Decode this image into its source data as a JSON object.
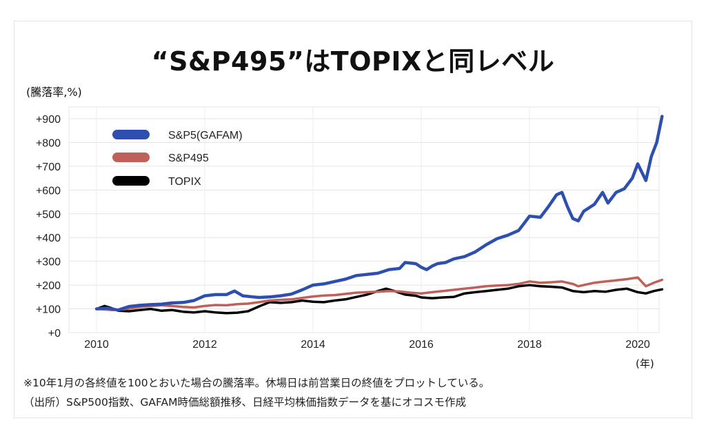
{
  "chart_data": {
    "type": "line",
    "title": "“S&P495”はTOPIXと同レベル",
    "ylabel": "(騰落率,%)",
    "xlabel": "(年)",
    "ylim": [
      0,
      900
    ],
    "xlim": [
      2010,
      2020.4
    ],
    "y_ticks": [
      "+0",
      "+100",
      "+200",
      "+300",
      "+400",
      "+500",
      "+600",
      "+700",
      "+800",
      "+900"
    ],
    "x_ticks": [
      "2010",
      "2012",
      "2014",
      "2016",
      "2018",
      "2020"
    ],
    "grid": "horizontal",
    "legend_position": "top-left",
    "series": [
      {
        "name": "S&P5(GAFAM)",
        "color": "#2c4fb0",
        "points": [
          [
            2010.0,
            100
          ],
          [
            2010.2,
            103
          ],
          [
            2010.4,
            95
          ],
          [
            2010.6,
            110
          ],
          [
            2010.8,
            115
          ],
          [
            2011.0,
            118
          ],
          [
            2011.2,
            120
          ],
          [
            2011.4,
            125
          ],
          [
            2011.6,
            127
          ],
          [
            2011.8,
            135
          ],
          [
            2012.0,
            155
          ],
          [
            2012.2,
            160
          ],
          [
            2012.4,
            160
          ],
          [
            2012.55,
            175
          ],
          [
            2012.7,
            155
          ],
          [
            2012.9,
            150
          ],
          [
            2013.0,
            148
          ],
          [
            2013.2,
            150
          ],
          [
            2013.4,
            155
          ],
          [
            2013.6,
            162
          ],
          [
            2013.8,
            180
          ],
          [
            2014.0,
            200
          ],
          [
            2014.2,
            205
          ],
          [
            2014.4,
            215
          ],
          [
            2014.6,
            225
          ],
          [
            2014.8,
            240
          ],
          [
            2015.0,
            245
          ],
          [
            2015.2,
            250
          ],
          [
            2015.4,
            265
          ],
          [
            2015.6,
            270
          ],
          [
            2015.7,
            295
          ],
          [
            2015.9,
            290
          ],
          [
            2016.0,
            275
          ],
          [
            2016.1,
            265
          ],
          [
            2016.2,
            280
          ],
          [
            2016.3,
            290
          ],
          [
            2016.45,
            295
          ],
          [
            2016.6,
            310
          ],
          [
            2016.8,
            320
          ],
          [
            2017.0,
            340
          ],
          [
            2017.2,
            370
          ],
          [
            2017.4,
            395
          ],
          [
            2017.6,
            410
          ],
          [
            2017.8,
            430
          ],
          [
            2017.9,
            460
          ],
          [
            2018.0,
            490
          ],
          [
            2018.2,
            485
          ],
          [
            2018.35,
            530
          ],
          [
            2018.5,
            580
          ],
          [
            2018.6,
            590
          ],
          [
            2018.7,
            530
          ],
          [
            2018.8,
            480
          ],
          [
            2018.9,
            470
          ],
          [
            2019.0,
            510
          ],
          [
            2019.2,
            540
          ],
          [
            2019.35,
            590
          ],
          [
            2019.45,
            545
          ],
          [
            2019.6,
            590
          ],
          [
            2019.75,
            605
          ],
          [
            2019.9,
            650
          ],
          [
            2020.0,
            710
          ],
          [
            2020.15,
            640
          ],
          [
            2020.25,
            740
          ],
          [
            2020.35,
            800
          ],
          [
            2020.45,
            910
          ]
        ]
      },
      {
        "name": "S&P495",
        "color": "#c0605a",
        "points": [
          [
            2010.0,
            100
          ],
          [
            2010.3,
            95
          ],
          [
            2010.5,
            98
          ],
          [
            2010.8,
            108
          ],
          [
            2011.0,
            112
          ],
          [
            2011.2,
            115
          ],
          [
            2011.4,
            112
          ],
          [
            2011.6,
            108
          ],
          [
            2011.8,
            106
          ],
          [
            2012.0,
            112
          ],
          [
            2012.2,
            116
          ],
          [
            2012.4,
            115
          ],
          [
            2012.6,
            120
          ],
          [
            2012.8,
            122
          ],
          [
            2013.0,
            128
          ],
          [
            2013.2,
            135
          ],
          [
            2013.4,
            138
          ],
          [
            2013.6,
            140
          ],
          [
            2013.8,
            146
          ],
          [
            2014.0,
            152
          ],
          [
            2014.2,
            156
          ],
          [
            2014.4,
            158
          ],
          [
            2014.6,
            163
          ],
          [
            2014.8,
            168
          ],
          [
            2015.0,
            170
          ],
          [
            2015.2,
            172
          ],
          [
            2015.4,
            175
          ],
          [
            2015.6,
            173
          ],
          [
            2015.8,
            168
          ],
          [
            2016.0,
            165
          ],
          [
            2016.2,
            170
          ],
          [
            2016.4,
            175
          ],
          [
            2016.6,
            180
          ],
          [
            2016.8,
            185
          ],
          [
            2017.0,
            190
          ],
          [
            2017.2,
            195
          ],
          [
            2017.4,
            198
          ],
          [
            2017.6,
            200
          ],
          [
            2017.8,
            205
          ],
          [
            2018.0,
            215
          ],
          [
            2018.2,
            210
          ],
          [
            2018.4,
            212
          ],
          [
            2018.6,
            215
          ],
          [
            2018.8,
            205
          ],
          [
            2018.9,
            195
          ],
          [
            2019.0,
            200
          ],
          [
            2019.2,
            210
          ],
          [
            2019.4,
            215
          ],
          [
            2019.6,
            220
          ],
          [
            2019.8,
            225
          ],
          [
            2020.0,
            232
          ],
          [
            2020.15,
            195
          ],
          [
            2020.3,
            210
          ],
          [
            2020.45,
            222
          ]
        ]
      },
      {
        "name": "TOPIX",
        "color": "#000000",
        "points": [
          [
            2010.0,
            100
          ],
          [
            2010.15,
            112
          ],
          [
            2010.25,
            105
          ],
          [
            2010.4,
            92
          ],
          [
            2010.6,
            90
          ],
          [
            2010.8,
            95
          ],
          [
            2011.0,
            100
          ],
          [
            2011.2,
            92
          ],
          [
            2011.4,
            95
          ],
          [
            2011.6,
            88
          ],
          [
            2011.8,
            85
          ],
          [
            2012.0,
            90
          ],
          [
            2012.2,
            85
          ],
          [
            2012.4,
            82
          ],
          [
            2012.6,
            84
          ],
          [
            2012.8,
            90
          ],
          [
            2013.0,
            110
          ],
          [
            2013.2,
            128
          ],
          [
            2013.4,
            125
          ],
          [
            2013.6,
            128
          ],
          [
            2013.8,
            135
          ],
          [
            2014.0,
            130
          ],
          [
            2014.2,
            128
          ],
          [
            2014.4,
            135
          ],
          [
            2014.6,
            140
          ],
          [
            2014.8,
            150
          ],
          [
            2015.0,
            160
          ],
          [
            2015.2,
            175
          ],
          [
            2015.35,
            185
          ],
          [
            2015.5,
            175
          ],
          [
            2015.7,
            160
          ],
          [
            2015.9,
            155
          ],
          [
            2016.0,
            148
          ],
          [
            2016.2,
            145
          ],
          [
            2016.4,
            148
          ],
          [
            2016.6,
            150
          ],
          [
            2016.8,
            165
          ],
          [
            2017.0,
            170
          ],
          [
            2017.2,
            175
          ],
          [
            2017.4,
            180
          ],
          [
            2017.6,
            185
          ],
          [
            2017.8,
            195
          ],
          [
            2018.0,
            200
          ],
          [
            2018.2,
            195
          ],
          [
            2018.4,
            193
          ],
          [
            2018.6,
            190
          ],
          [
            2018.8,
            175
          ],
          [
            2019.0,
            170
          ],
          [
            2019.2,
            175
          ],
          [
            2019.4,
            172
          ],
          [
            2019.6,
            180
          ],
          [
            2019.8,
            185
          ],
          [
            2020.0,
            170
          ],
          [
            2020.15,
            165
          ],
          [
            2020.3,
            175
          ],
          [
            2020.45,
            182
          ]
        ]
      }
    ]
  },
  "notes": {
    "line1": "※10年1月の各終値を100とおいた場合の騰落率。休場日は前営業日の終値をプロットしている。",
    "line2": "（出所）S&P500指数、GAFAM時価総額推移、日経平均株価指数データを基にオコスモ作成"
  }
}
